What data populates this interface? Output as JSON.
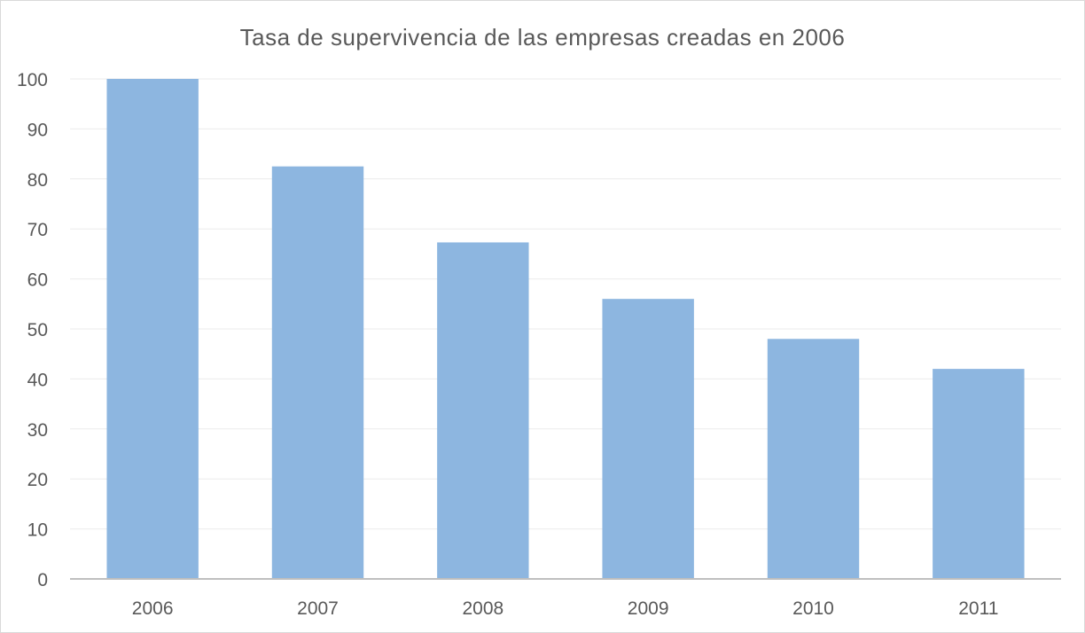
{
  "chart_data": {
    "type": "bar",
    "title": "Tasa de supervivencia de las empresas creadas en 2006",
    "xlabel": "",
    "ylabel": "",
    "categories": [
      "2006",
      "2007",
      "2008",
      "2009",
      "2010",
      "2011"
    ],
    "values": [
      100,
      82.5,
      67.3,
      56,
      48,
      42
    ],
    "ylim": [
      0,
      100
    ],
    "yticks": [
      "0",
      "10",
      "20",
      "30",
      "40",
      "50",
      "60",
      "70",
      "80",
      "90",
      "100"
    ],
    "grid": true,
    "legend": "none",
    "bar_color": "#8db6e0",
    "gridline_color": "#ebebeb",
    "axis_color": "#bfbfbf"
  }
}
